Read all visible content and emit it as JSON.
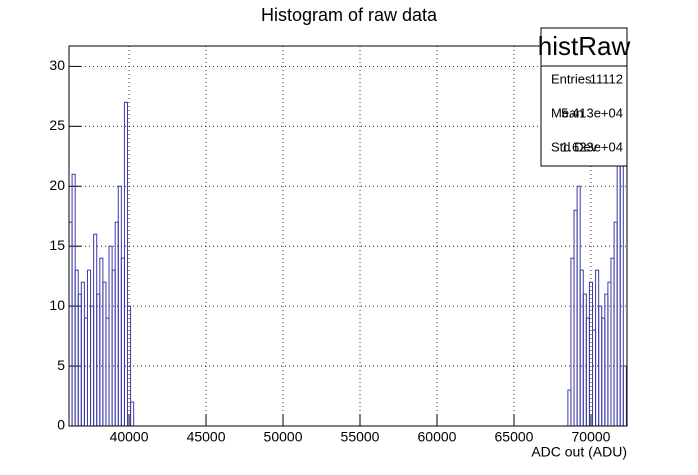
{
  "chart_data": {
    "type": "histogram",
    "title": "Histogram of raw data",
    "x_label": "ADC out (ADU)",
    "bins": [
      36100,
      36300,
      36500,
      36700,
      36900,
      37100,
      37300,
      37500,
      37700,
      37900,
      38100,
      38300,
      38500,
      38700,
      38900,
      39100,
      39300,
      39500,
      39700,
      39900,
      40100,
      40300,
      40500,
      40700,
      40900,
      41100,
      41300,
      41500,
      41700,
      41900,
      42100,
      42300,
      42500,
      42700,
      42900,
      43100,
      43300,
      43500,
      43700,
      43900,
      44100,
      44300,
      44500,
      44700,
      44900,
      45100,
      45300,
      45500,
      45700,
      45900,
      46100,
      46300,
      46500,
      46700,
      46900,
      47100,
      47300,
      47500,
      47700,
      47900,
      48100,
      48300,
      48500,
      48700,
      48900,
      49100,
      49300,
      49500,
      49700,
      49900,
      50100,
      50300,
      50500,
      50700,
      50900,
      51100,
      51300,
      51500,
      51700,
      51900,
      52100,
      52300,
      52500,
      52700,
      52900,
      53100,
      53300,
      53500,
      53700,
      53900,
      54100,
      54300,
      54500,
      54700,
      54900,
      55100,
      55300,
      55500,
      55700,
      55900,
      56100,
      56300,
      56500,
      56700,
      56900,
      57100,
      57300,
      57500,
      57700,
      57900,
      58100,
      58300,
      58500,
      58700,
      58900,
      59100,
      59300,
      59500,
      59700,
      59900,
      60100,
      60300,
      60500,
      60700,
      60900,
      61100,
      61300,
      61500,
      61700,
      61900,
      62100,
      62300,
      62500,
      62700,
      62900,
      63100,
      63300,
      63500,
      63700,
      63900,
      64100,
      64300,
      64500,
      64700,
      64900,
      65100,
      65300,
      65500,
      65700,
      65900,
      66100,
      66300,
      66500,
      66700,
      66900,
      67100,
      67300,
      67500,
      67700,
      67900,
      68100,
      68300,
      68500,
      68700,
      68900,
      69100,
      69300,
      69500,
      69700,
      69900,
      70100,
      70300,
      70500,
      70700,
      70900,
      71100,
      71300,
      71500,
      71700,
      71900,
      72100,
      72300
    ],
    "values": [
      17,
      21,
      13,
      11,
      12,
      9,
      13,
      10,
      16,
      11,
      14,
      12,
      9,
      15,
      13,
      17,
      20,
      14,
      27,
      10,
      2,
      0,
      0,
      0,
      0,
      0,
      0,
      0,
      0,
      0,
      0,
      0,
      0,
      0,
      0,
      0,
      0,
      0,
      0,
      0,
      0,
      0,
      0,
      0,
      0,
      0,
      0,
      0,
      0,
      0,
      0,
      0,
      0,
      0,
      0,
      0,
      0,
      0,
      0,
      0,
      0,
      0,
      0,
      0,
      0,
      0,
      0,
      0,
      0,
      0,
      0,
      0,
      0,
      0,
      0,
      0,
      0,
      0,
      0,
      0,
      0,
      0,
      0,
      0,
      0,
      0,
      0,
      0,
      0,
      0,
      0,
      0,
      0,
      0,
      0,
      0,
      0,
      0,
      0,
      0,
      0,
      0,
      0,
      0,
      0,
      0,
      0,
      0,
      0,
      0,
      0,
      0,
      0,
      0,
      0,
      0,
      0,
      0,
      0,
      0,
      0,
      0,
      0,
      0,
      0,
      0,
      0,
      0,
      0,
      0,
      0,
      0,
      0,
      0,
      0,
      0,
      0,
      0,
      0,
      0,
      0,
      0,
      0,
      0,
      0,
      0,
      0,
      0,
      0,
      0,
      0,
      0,
      0,
      0,
      0,
      0,
      0,
      0,
      0,
      0,
      0,
      0,
      3,
      14,
      18,
      20,
      13,
      11,
      9,
      12,
      8,
      13,
      10,
      9,
      11,
      12,
      14,
      17,
      22,
      27,
      5
    ],
    "color": "#3b3ba8",
    "xlim": [
      36100,
      72340
    ],
    "ylim": [
      0,
      31.7
    ],
    "xticks": [
      40000,
      45000,
      50000,
      55000,
      60000,
      65000,
      70000
    ],
    "yticks": [
      0,
      5,
      10,
      15,
      20,
      25,
      30
    ],
    "grid": true,
    "stats": {
      "name": "histRaw",
      "rows": [
        [
          "Entries",
          11112
        ],
        [
          "Mean",
          "5.413e+04"
        ],
        [
          "Std Dev",
          "1.623e+04"
        ]
      ]
    }
  }
}
